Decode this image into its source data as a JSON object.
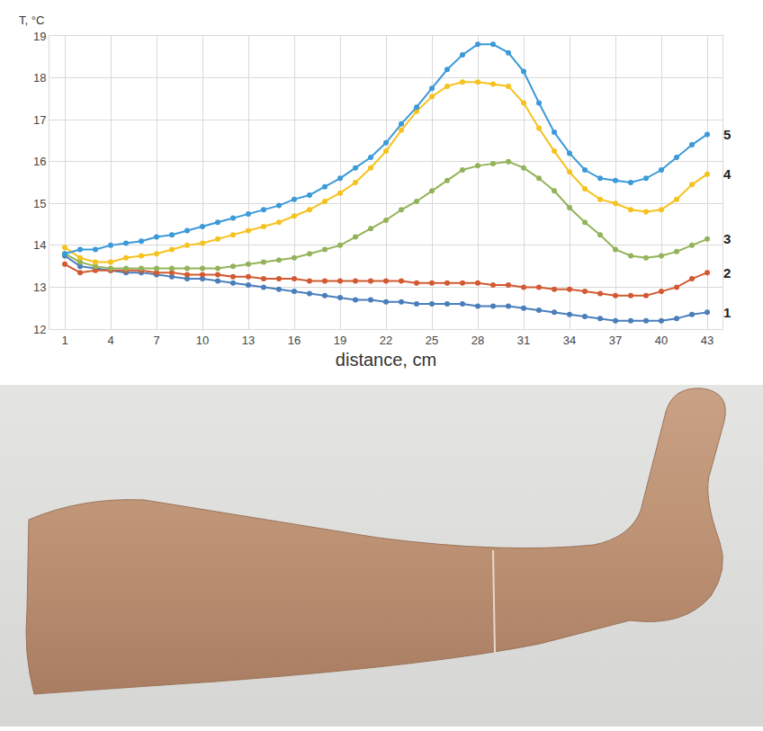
{
  "chart_data": {
    "type": "line",
    "y_label": "T, °C",
    "x_label": "distance, cm",
    "x": [
      1,
      2,
      3,
      4,
      5,
      6,
      7,
      8,
      9,
      10,
      11,
      12,
      13,
      14,
      15,
      16,
      17,
      18,
      19,
      20,
      21,
      22,
      23,
      24,
      25,
      26,
      27,
      28,
      29,
      30,
      31,
      32,
      33,
      34,
      35,
      36,
      37,
      38,
      39,
      40,
      41,
      42,
      43
    ],
    "xlim": [
      0,
      44
    ],
    "xticks": [
      1,
      4,
      7,
      10,
      13,
      16,
      19,
      22,
      25,
      28,
      31,
      34,
      37,
      40,
      43
    ],
    "ylim": [
      12,
      19
    ],
    "yticks": [
      12,
      13,
      14,
      15,
      16,
      17,
      18,
      19
    ],
    "grid": true,
    "marker": "circle",
    "series": [
      {
        "name": "1",
        "color": "#4a7ebb",
        "values": [
          13.75,
          13.5,
          13.45,
          13.4,
          13.35,
          13.35,
          13.3,
          13.25,
          13.2,
          13.2,
          13.15,
          13.1,
          13.05,
          13.0,
          12.95,
          12.9,
          12.85,
          12.8,
          12.75,
          12.7,
          12.7,
          12.65,
          12.65,
          12.6,
          12.6,
          12.6,
          12.6,
          12.55,
          12.55,
          12.55,
          12.5,
          12.45,
          12.4,
          12.35,
          12.3,
          12.25,
          12.2,
          12.2,
          12.2,
          12.2,
          12.25,
          12.35,
          12.4
        ]
      },
      {
        "name": "2",
        "color": "#d25a32",
        "values": [
          13.55,
          13.35,
          13.4,
          13.4,
          13.4,
          13.4,
          13.35,
          13.35,
          13.3,
          13.3,
          13.3,
          13.25,
          13.25,
          13.2,
          13.2,
          13.2,
          13.15,
          13.15,
          13.15,
          13.15,
          13.15,
          13.15,
          13.15,
          13.1,
          13.1,
          13.1,
          13.1,
          13.1,
          13.05,
          13.05,
          13.0,
          13.0,
          12.95,
          12.95,
          12.9,
          12.85,
          12.8,
          12.8,
          12.8,
          12.9,
          13.0,
          13.2,
          13.35
        ]
      },
      {
        "name": "3",
        "color": "#93b35a",
        "values": [
          13.8,
          13.6,
          13.5,
          13.45,
          13.45,
          13.45,
          13.45,
          13.45,
          13.45,
          13.45,
          13.45,
          13.5,
          13.55,
          13.6,
          13.65,
          13.7,
          13.8,
          13.9,
          14.0,
          14.2,
          14.4,
          14.6,
          14.85,
          15.05,
          15.3,
          15.55,
          15.8,
          15.9,
          15.95,
          16.0,
          15.85,
          15.6,
          15.3,
          14.9,
          14.55,
          14.25,
          13.9,
          13.75,
          13.7,
          13.75,
          13.85,
          14.0,
          14.15
        ]
      },
      {
        "name": "4",
        "color": "#f5c21e",
        "values": [
          13.95,
          13.7,
          13.6,
          13.6,
          13.7,
          13.75,
          13.8,
          13.9,
          14.0,
          14.05,
          14.15,
          14.25,
          14.35,
          14.45,
          14.55,
          14.7,
          14.85,
          15.05,
          15.25,
          15.5,
          15.85,
          16.25,
          16.75,
          17.2,
          17.55,
          17.8,
          17.9,
          17.9,
          17.85,
          17.8,
          17.4,
          16.8,
          16.25,
          15.75,
          15.35,
          15.1,
          15.0,
          14.85,
          14.8,
          14.85,
          15.1,
          15.45,
          15.7
        ]
      },
      {
        "name": "5",
        "color": "#3b9ad8",
        "values": [
          13.8,
          13.9,
          13.9,
          14.0,
          14.05,
          14.1,
          14.2,
          14.25,
          14.35,
          14.45,
          14.55,
          14.65,
          14.75,
          14.85,
          14.95,
          15.1,
          15.2,
          15.4,
          15.6,
          15.85,
          16.1,
          16.45,
          16.9,
          17.3,
          17.75,
          18.2,
          18.55,
          18.8,
          18.8,
          18.6,
          18.15,
          17.4,
          16.7,
          16.2,
          15.8,
          15.6,
          15.55,
          15.5,
          15.6,
          15.8,
          16.1,
          16.4,
          16.65
        ]
      }
    ]
  }
}
